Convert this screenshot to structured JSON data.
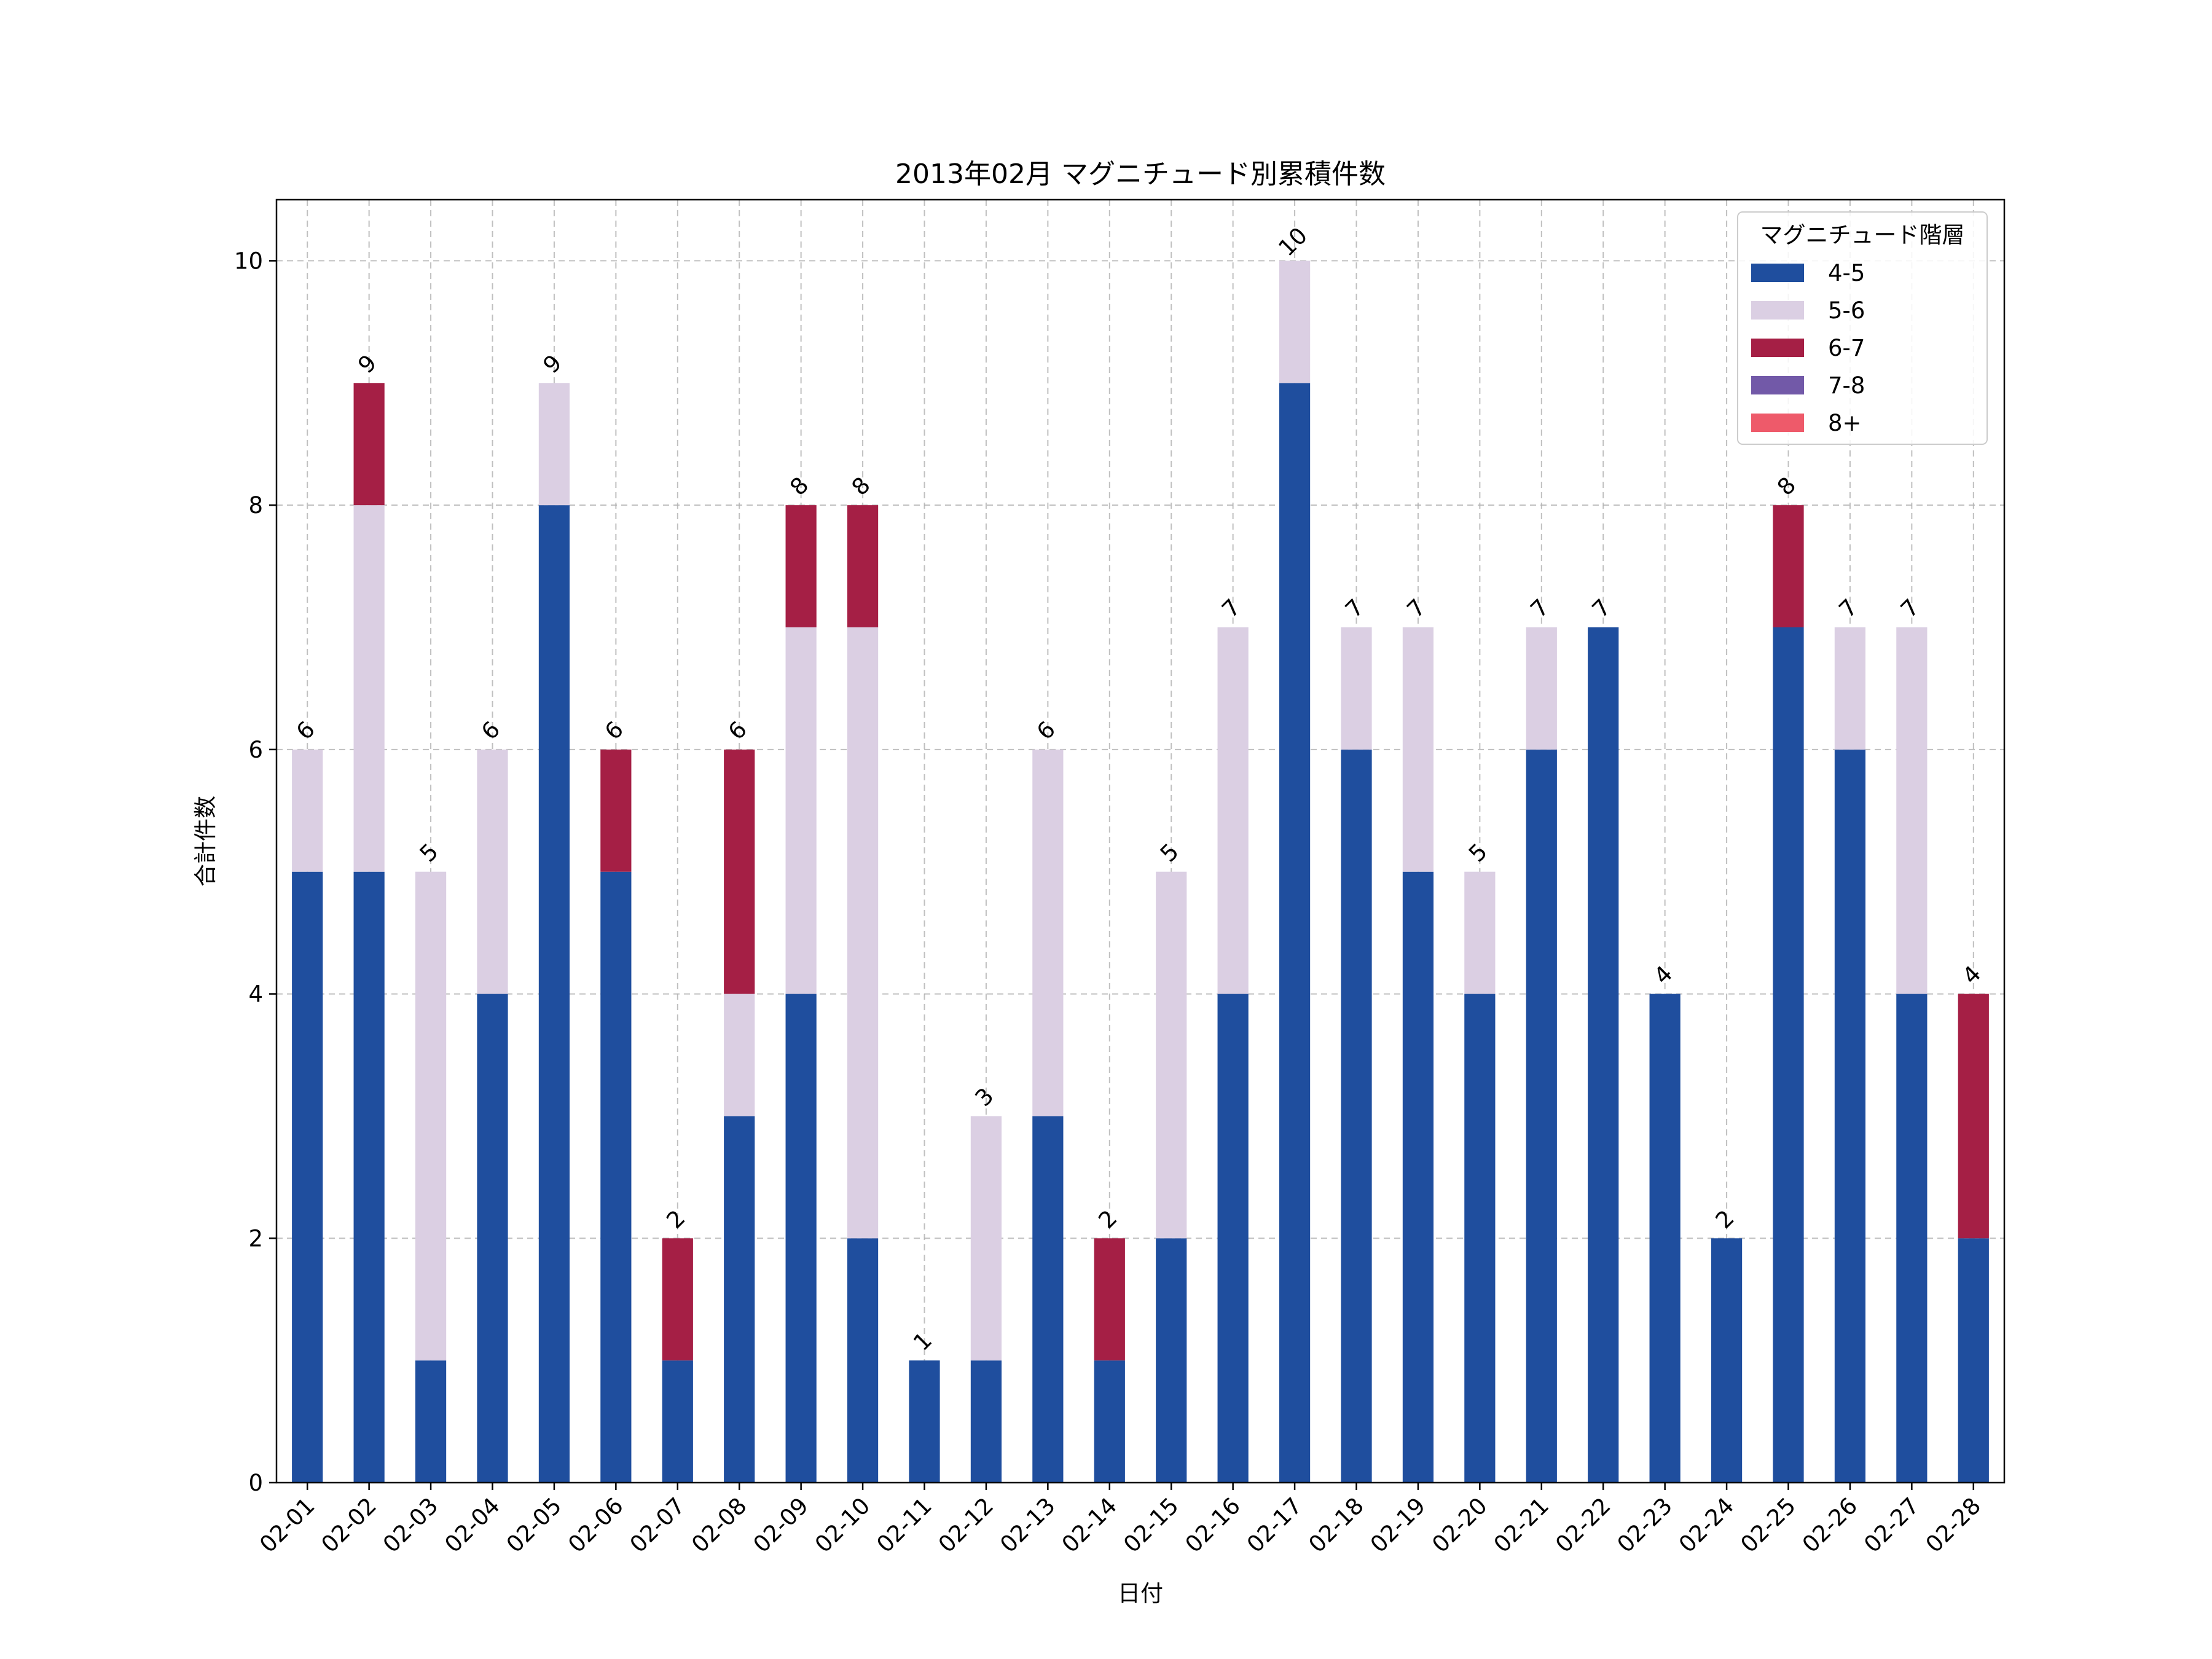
{
  "chart_data": {
    "type": "bar",
    "stacked": true,
    "title": "2013年02月 マグニチュード別累積件数",
    "xlabel": "日付",
    "ylabel": "合計件数",
    "ylim": [
      0,
      10.5
    ],
    "yticks": [
      0,
      2,
      4,
      6,
      8,
      10
    ],
    "grid": true,
    "legend_title": "マグニチュード階層",
    "legend_position": "top-right",
    "categories": [
      "02-01",
      "02-02",
      "02-03",
      "02-04",
      "02-05",
      "02-06",
      "02-07",
      "02-08",
      "02-09",
      "02-10",
      "02-11",
      "02-12",
      "02-13",
      "02-14",
      "02-15",
      "02-16",
      "02-17",
      "02-18",
      "02-19",
      "02-20",
      "02-21",
      "02-22",
      "02-23",
      "02-24",
      "02-25",
      "02-26",
      "02-27",
      "02-28"
    ],
    "series": [
      {
        "name": "4-5",
        "color": "#1f4e9e",
        "values": [
          5,
          5,
          1,
          4,
          8,
          5,
          1,
          3,
          4,
          2,
          1,
          1,
          3,
          1,
          2,
          4,
          9,
          6,
          5,
          4,
          6,
          7,
          4,
          2,
          7,
          6,
          4,
          2
        ]
      },
      {
        "name": "5-6",
        "color": "#dbcfe3",
        "values": [
          1,
          3,
          4,
          2,
          1,
          0,
          0,
          1,
          3,
          5,
          0,
          2,
          3,
          0,
          3,
          3,
          1,
          1,
          2,
          1,
          1,
          0,
          0,
          0,
          0,
          1,
          3,
          0
        ]
      },
      {
        "name": "6-7",
        "color": "#a51f45",
        "values": [
          0,
          1,
          0,
          0,
          0,
          1,
          1,
          2,
          1,
          1,
          0,
          0,
          0,
          1,
          0,
          0,
          0,
          0,
          0,
          0,
          0,
          0,
          0,
          0,
          1,
          0,
          0,
          2
        ]
      },
      {
        "name": "7-8",
        "color": "#7259a8",
        "values": [
          0,
          0,
          0,
          0,
          0,
          0,
          0,
          0,
          0,
          0,
          0,
          0,
          0,
          0,
          0,
          0,
          0,
          0,
          0,
          0,
          0,
          0,
          0,
          0,
          0,
          0,
          0,
          0
        ]
      },
      {
        "name": "8+",
        "color": "#ee5a6a",
        "values": [
          0,
          0,
          0,
          0,
          0,
          0,
          0,
          0,
          0,
          0,
          0,
          0,
          0,
          0,
          0,
          0,
          0,
          0,
          0,
          0,
          0,
          0,
          0,
          0,
          0,
          0,
          0,
          0
        ]
      }
    ],
    "totals": [
      6,
      9,
      5,
      6,
      9,
      6,
      2,
      6,
      8,
      8,
      1,
      3,
      6,
      2,
      5,
      7,
      10,
      7,
      7,
      5,
      7,
      7,
      4,
      2,
      8,
      7,
      7,
      4
    ]
  }
}
